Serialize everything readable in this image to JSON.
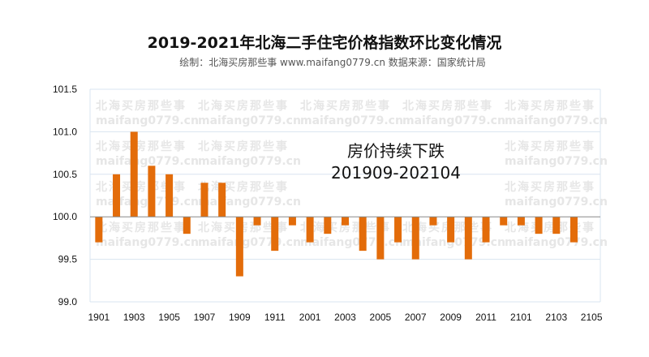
{
  "chart_data": {
    "type": "bar",
    "title": "2019-2021年北海二手住宅价格指数环比变化情况",
    "subtitle": "绘制：北海买房那些事 www.maifang0779.cn    数据来源：国家统计局",
    "categories": [
      "1901",
      "1902",
      "1903",
      "1904",
      "1905",
      "1906",
      "1907",
      "1908",
      "1909",
      "1910",
      "1911",
      "1912",
      "2001",
      "2002",
      "2003",
      "2004",
      "2005",
      "2006",
      "2007",
      "2008",
      "2009",
      "2010",
      "2011",
      "2012",
      "2101",
      "2102",
      "2103",
      "2104",
      "2105"
    ],
    "values": [
      99.7,
      100.5,
      101.0,
      100.6,
      100.5,
      99.8,
      100.4,
      100.4,
      99.3,
      99.9,
      99.6,
      99.9,
      99.7,
      99.8,
      99.9,
      99.6,
      99.5,
      99.7,
      99.5,
      99.9,
      99.7,
      99.5,
      99.7,
      99.9,
      99.9,
      99.8,
      99.8,
      99.7,
      null
    ],
    "baseline": 100.0,
    "ylim": [
      99.0,
      101.5
    ],
    "yticks": [
      "99.0",
      "99.5",
      "100.0",
      "100.5",
      "101.0",
      "101.5"
    ],
    "xtick_labels": [
      "1901",
      "1903",
      "1905",
      "1907",
      "1909",
      "1911",
      "2001",
      "2003",
      "2005",
      "2007",
      "2009",
      "2011",
      "2101",
      "2103",
      "2105"
    ],
    "annotation": [
      "房价持续下跌",
      "201909-202104"
    ],
    "watermark": [
      "北海买房那些事",
      "maifang0779.cn"
    ],
    "bar_color": "#e36c0a",
    "grid": true
  }
}
